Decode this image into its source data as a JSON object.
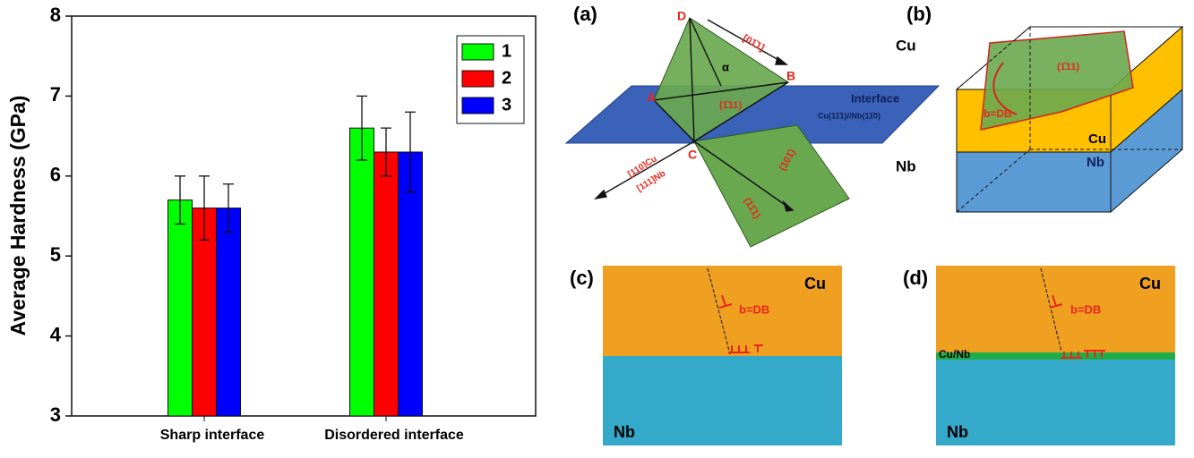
{
  "chart_data": {
    "type": "bar",
    "y_label": "Average Hardness (GPa)",
    "categories": [
      "Sharp interface",
      "Disordered interface"
    ],
    "series": [
      {
        "name": "1",
        "color": "#00ff00",
        "values": [
          5.7,
          6.6
        ],
        "errors": [
          0.3,
          0.4
        ]
      },
      {
        "name": "2",
        "color": "#ff0000",
        "values": [
          5.6,
          6.3
        ],
        "errors": [
          0.4,
          0.3
        ]
      },
      {
        "name": "3",
        "color": "#0000ff",
        "values": [
          5.6,
          6.3
        ],
        "errors": [
          0.3,
          0.5
        ]
      }
    ],
    "ylim": [
      3,
      8
    ],
    "yticks": [
      3,
      4,
      5,
      6,
      7,
      8
    ],
    "legend": "upper right"
  },
  "panels": {
    "a": {
      "label": "(a)",
      "point_d": "D",
      "point_b": "B",
      "point_a": "A",
      "point_c": "C",
      "angle": "α",
      "dir_db": "[01̄1]",
      "plane_top": "(1̄11)",
      "plane_bottom": "(101̄)",
      "dir_bottom": "(11̄1)",
      "dir_cu": "[110]Cu",
      "dir_nb": "[111]Nb",
      "cu": "Cu",
      "nb": "Nb",
      "interface": "Interface",
      "interface_planes": "Cu(11̄1)//Nb(11̄0)"
    },
    "b": {
      "label": "(b)",
      "plane": "(1̄11)",
      "burgers": "b=DB",
      "cu": "Cu",
      "nb": "Nb"
    },
    "c": {
      "label": "(c)",
      "cu": "Cu",
      "nb": "Nb",
      "burgers": "b=DB"
    },
    "d": {
      "label": "(d)",
      "cu": "Cu",
      "nb": "Nb",
      "burgers": "b=DB",
      "interface": "Cu/Nb"
    }
  }
}
